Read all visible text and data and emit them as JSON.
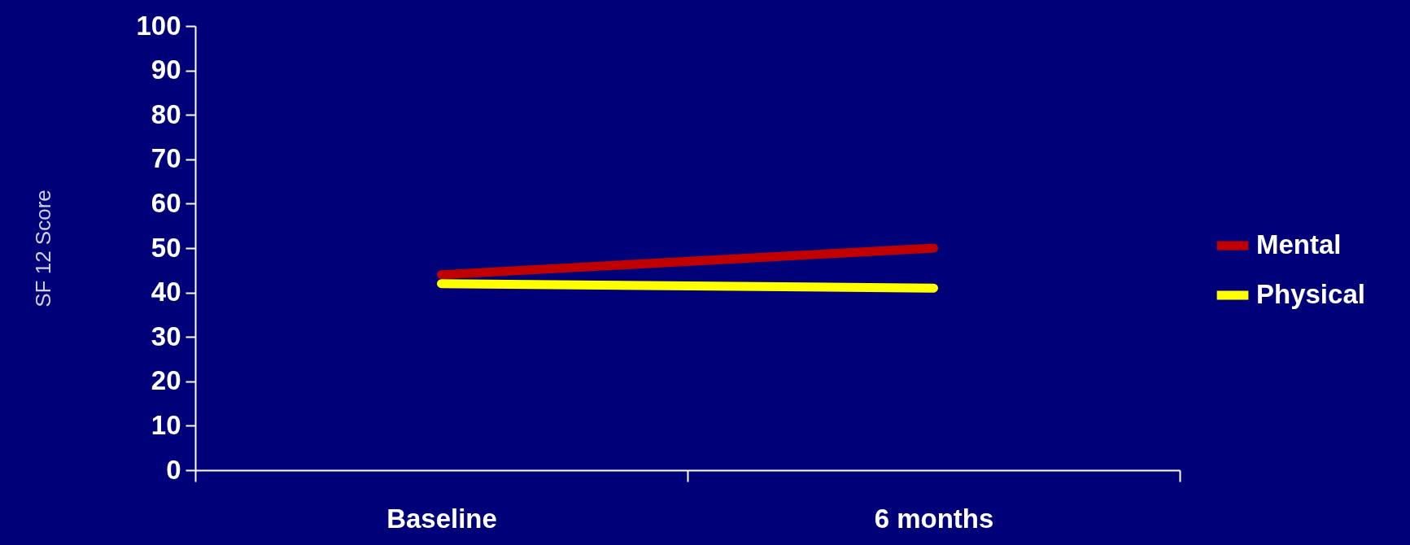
{
  "chart_data": {
    "type": "line",
    "ylabel": "SF 12 Score",
    "categories": [
      "Baseline",
      "6 months"
    ],
    "ylim": [
      0,
      100
    ],
    "yticks": [
      0,
      10,
      20,
      30,
      40,
      50,
      60,
      70,
      80,
      90,
      100
    ],
    "grid": false,
    "legend": "right",
    "marker": "none",
    "line_style": "solid",
    "series": [
      {
        "name": "Mental",
        "color": "#c00000",
        "values": [
          44,
          50
        ]
      },
      {
        "name": "Physical",
        "color": "#ffff00",
        "values": [
          42,
          41
        ]
      }
    ]
  }
}
